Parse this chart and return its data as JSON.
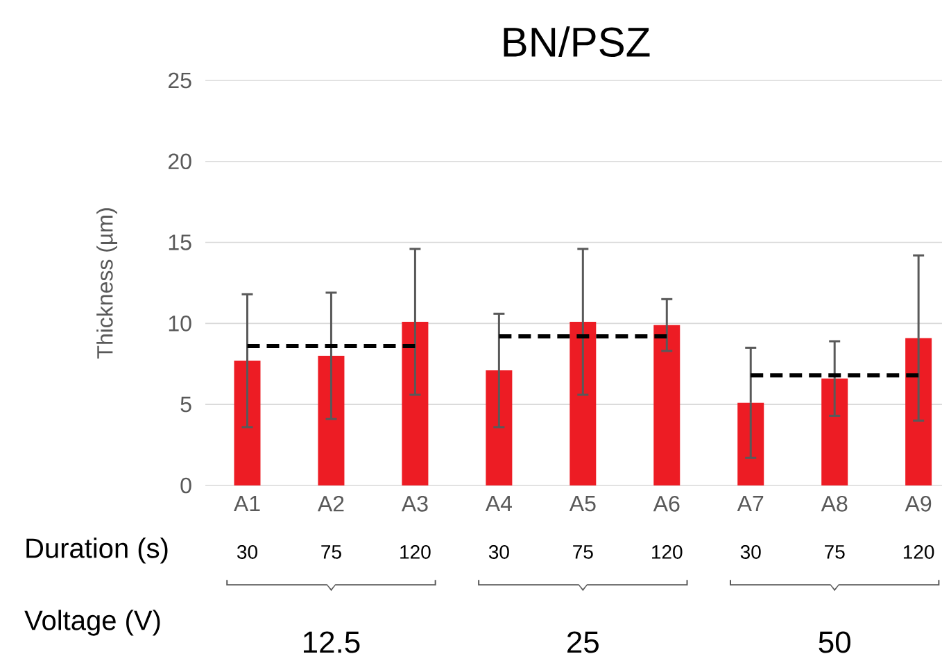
{
  "chart_data": {
    "type": "bar",
    "title": "BN/PSZ",
    "ylabel": "Thickness (µm)",
    "categories": [
      "A1",
      "A2",
      "A3",
      "A4",
      "A5",
      "A6",
      "A7",
      "A8",
      "A9"
    ],
    "series": [
      {
        "type": "bar",
        "color": "#ed1c24",
        "values": [
          7.7,
          8.0,
          10.1,
          7.1,
          10.1,
          9.9,
          5.1,
          6.6,
          9.1
        ],
        "errors": [
          4.1,
          3.9,
          4.5,
          3.5,
          4.5,
          1.6,
          3.4,
          2.3,
          5.1
        ]
      },
      {
        "type": "line",
        "color": "#000000",
        "line_style": "dashed",
        "values": [
          8.6,
          8.6,
          8.6,
          null,
          null,
          null,
          null,
          null,
          null
        ]
      },
      {
        "type": "line",
        "color": "#000000",
        "line_style": "dashed",
        "values": [
          null,
          null,
          null,
          9.2,
          9.2,
          9.2,
          null,
          null,
          null
        ]
      },
      {
        "type": "line",
        "color": "#000000",
        "line_style": "dashed",
        "values": [
          null,
          null,
          null,
          null,
          null,
          null,
          6.8,
          6.8,
          6.8
        ]
      }
    ],
    "ylim": [
      0,
      25
    ],
    "yticks": [
      0,
      5,
      10,
      15,
      20,
      25
    ],
    "grid": "y",
    "annotations": [
      "Duration (s)",
      "30",
      "75",
      "120",
      "30",
      "75",
      "120",
      "30",
      "75",
      "120",
      "Voltage (V)",
      "12.5",
      "25",
      "50"
    ]
  }
}
